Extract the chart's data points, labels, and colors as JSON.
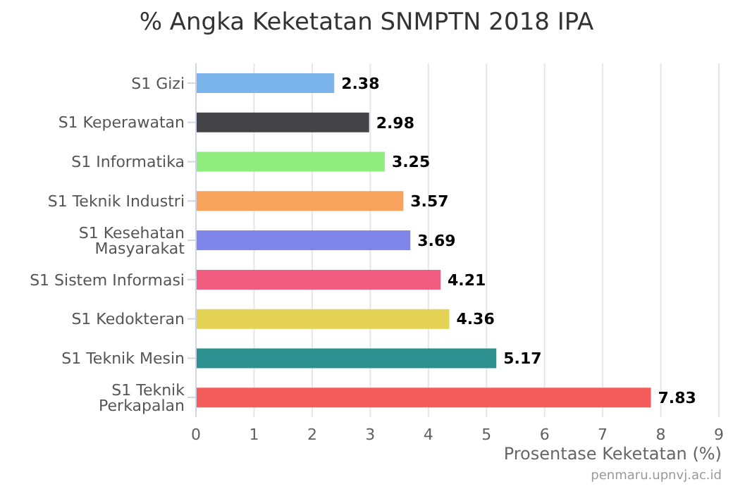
{
  "chart_data": {
    "type": "bar",
    "orientation": "horizontal",
    "title": "% Angka Keketatan SNMPTN 2018 IPA",
    "xlabel": "Prosentase Keketatan (%)",
    "categories": [
      "S1 Gizi",
      "S1 Keperawatan",
      "S1 Informatika",
      "S1 Teknik Industri",
      "S1 Kesehatan Masyarakat",
      "S1 Sistem Informasi",
      "S1 Kedokteran",
      "S1 Teknik Mesin",
      "S1 Teknik Perkapalan"
    ],
    "values": [
      2.38,
      2.98,
      3.25,
      3.57,
      3.69,
      4.21,
      4.36,
      5.17,
      7.83
    ],
    "colors": [
      "#7cb5ec",
      "#434348",
      "#90ed7d",
      "#f7a35c",
      "#8085e9",
      "#f15c80",
      "#e4d354",
      "#2b908f",
      "#f45b5b"
    ],
    "xlim": [
      0,
      9
    ],
    "xticks": [
      0,
      1,
      2,
      3,
      4,
      5,
      6,
      7,
      8,
      9
    ],
    "grid": "x",
    "data_labels": true,
    "legend": false,
    "annotations": [
      "penmaru.upnvj.ac.id"
    ]
  }
}
